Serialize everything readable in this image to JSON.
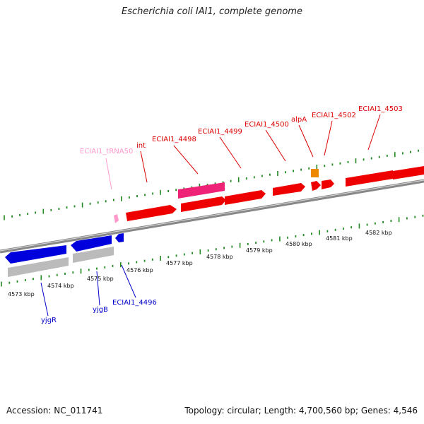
{
  "title": "Escherichia coli IAI1, complete genome",
  "accession": "Accession: NC_011741",
  "summary": "Topology: circular; Length: 4,700,560 bp; Genes: 4,546",
  "colors": {
    "forward_gene": "#ee0000",
    "reverse_gene": "#0000dd",
    "mobile_element": "#ee2277",
    "trna": "#ff99cc",
    "misc_feature": "#ee8800",
    "pseudogene_gray": "#bbbbbb",
    "ruler_ticks": "#228822",
    "backbone": "#888888"
  },
  "ruler_labels": [
    "4573 kbp",
    "4574 kbp",
    "4575 kbp",
    "4576 kbp",
    "4577 kbp",
    "4578 kbp",
    "4579 kbp",
    "4580 kbp",
    "4581 kbp",
    "4582 kbp"
  ],
  "top_labels": [
    "ECIAI1_tRNA50",
    "int",
    "ECIAI1_4498",
    "ECIAI1_4499",
    "ECIAI1_4500",
    "alpA",
    "ECIAI1_4502",
    "ECIAI1_4503"
  ],
  "bottom_labels": [
    "yjgR",
    "yjgB",
    "ECIAI1_4496"
  ]
}
